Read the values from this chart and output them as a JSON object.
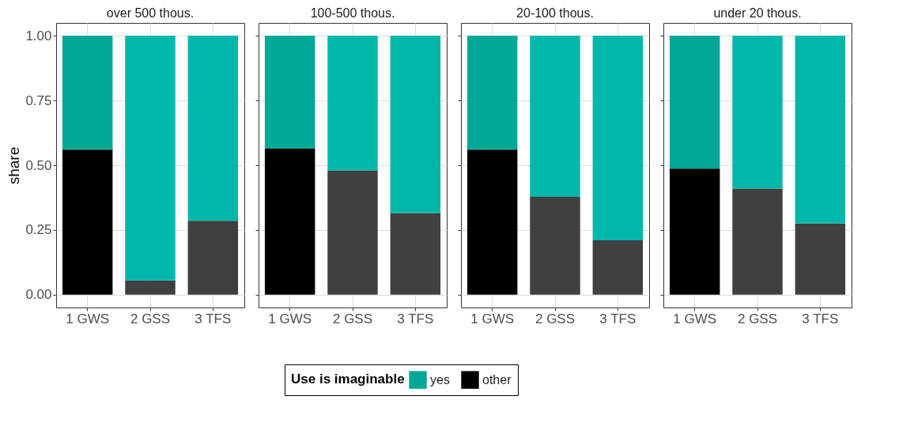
{
  "chart_data": [
    {
      "type": "bar",
      "title": "over 500 thous.",
      "ylabel": "share",
      "stacked": true,
      "categories": [
        "1 GWS",
        "2 GSS",
        "3 TFS"
      ],
      "ylim": [
        -0.05,
        1.05
      ],
      "yticks": [
        {
          "value": 0,
          "label": "0.00"
        },
        {
          "value": 0.25,
          "label": "0.25"
        },
        {
          "value": 0.5,
          "label": "0.50"
        },
        {
          "value": 0.75,
          "label": "0.75"
        },
        {
          "value": 1,
          "label": "1.00"
        }
      ],
      "grid": true,
      "legend": "bottom",
      "legend_title": "Use is imaginable",
      "series": [
        {
          "name": "other",
          "colors": [
            "#000000",
            "#404040",
            "#404040"
          ],
          "values": [
            0.56,
            0.055,
            0.285
          ]
        },
        {
          "name": "yes",
          "colors": [
            "#00a896",
            "#00b8aa",
            "#00b8aa"
          ],
          "values": [
            0.44,
            0.945,
            0.715
          ]
        }
      ]
    },
    {
      "type": "bar",
      "title": "100-500 thous.",
      "stacked": true,
      "categories": [
        "1 GWS",
        "2 GSS",
        "3 TFS"
      ],
      "ylim": [
        -0.05,
        1.05
      ],
      "yticks": [
        0,
        0.25,
        0.5,
        0.75,
        1
      ],
      "grid": true,
      "tick_labels": "x",
      "series": [
        {
          "colors": [
            "#000000",
            "#404040",
            "#404040"
          ],
          "values": [
            0.565,
            0.48,
            0.315
          ]
        },
        {
          "colors": [
            "#00a896",
            "#00b8aa",
            "#00b8aa"
          ],
          "values": [
            0.435,
            0.52,
            0.685
          ]
        }
      ]
    },
    {
      "type": "bar",
      "title": "20-100 thous.",
      "stacked": true,
      "categories": [
        "1 GWS",
        "2 GSS",
        "3 TFS"
      ],
      "ylim": [
        -0.05,
        1.05
      ],
      "yticks": [
        0,
        0.25,
        0.5,
        0.75,
        1
      ],
      "grid": true,
      "tick_labels": "x",
      "series": [
        {
          "colors": [
            "#000000",
            "#404040",
            "#404040"
          ],
          "values": [
            0.56,
            0.378,
            0.21
          ]
        },
        {
          "colors": [
            "#00a896",
            "#00b8aa",
            "#00b8aa"
          ],
          "values": [
            0.44,
            0.622,
            0.79
          ]
        }
      ]
    },
    {
      "type": "bar",
      "title": "under 20 thous.",
      "stacked": true,
      "categories": [
        "1 GWS",
        "2 GSS",
        "3 TFS"
      ],
      "ylim": [
        -0.05,
        1.05
      ],
      "yticks": [
        0,
        0.25,
        0.5,
        0.75,
        1
      ],
      "grid": true,
      "tick_labels": "x",
      "series": [
        {
          "colors": [
            "#000000",
            "#404040",
            "#404040"
          ],
          "values": [
            0.487,
            0.41,
            0.275
          ]
        },
        {
          "colors": [
            "#00a896",
            "#00b8aa",
            "#00b8aa"
          ],
          "values": [
            0.513,
            0.59,
            0.725
          ]
        }
      ]
    }
  ]
}
